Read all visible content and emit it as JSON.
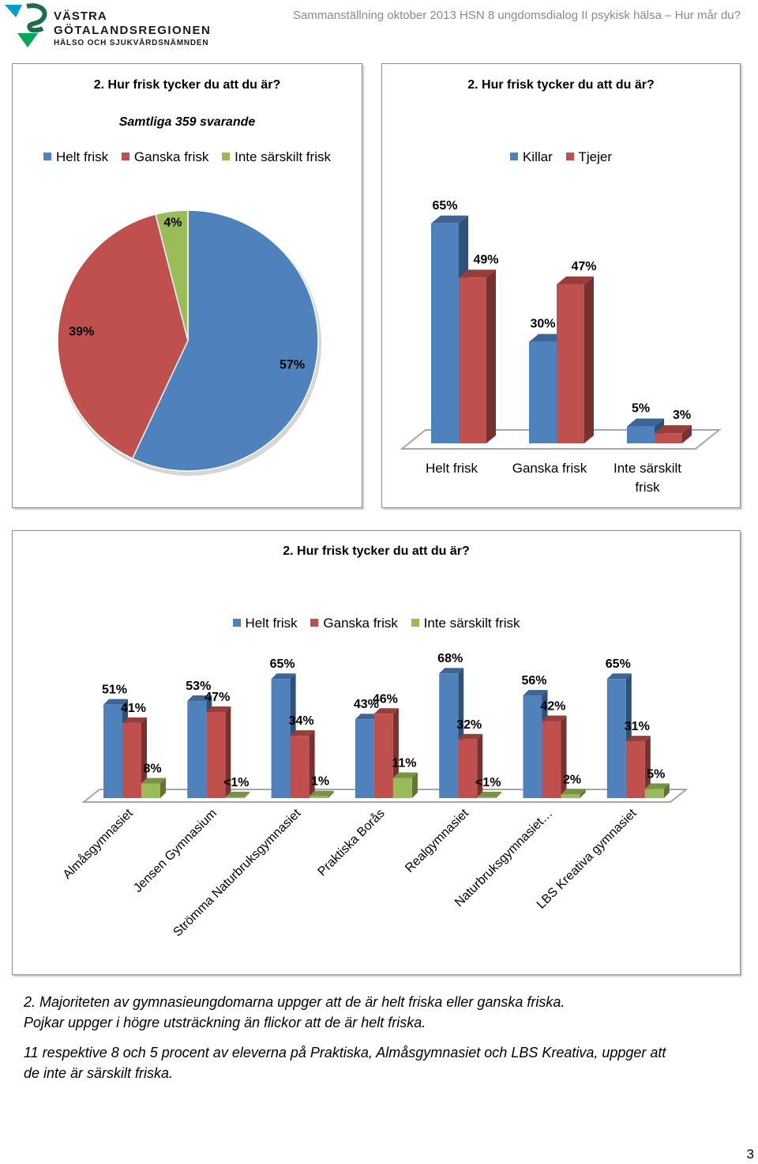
{
  "header": {
    "logo_line1": "VÄSTRA",
    "logo_line2": "GÖTALANDSREGIONEN",
    "logo_line3": "HÄLSO OCH SJUKVÅRDSNÄMNDEN",
    "title": "Sammanställning oktober 2013 HSN 8 ungdomsdialog II psykisk hälsa – Hur mår du?"
  },
  "colors": {
    "blue": "#4f81bd",
    "red": "#c0504d",
    "green": "#9bbb59"
  },
  "chart_data": [
    {
      "type": "pie",
      "title": "2. Hur frisk tycker du att du är?",
      "subtitle": "Samtliga 359 svarande",
      "legend": "top",
      "labels": [
        "Helt frisk",
        "Ganska frisk",
        "Inte särskilt frisk"
      ],
      "values": [
        57,
        39,
        4
      ],
      "value_labels": [
        "57%",
        "39%",
        "4%"
      ]
    },
    {
      "type": "bar",
      "title": "2. Hur frisk tycker du att du är?",
      "legend": "top",
      "categories": [
        "Helt frisk",
        "Ganska frisk",
        "Inte särskilt frisk"
      ],
      "series": [
        {
          "name": "Killar",
          "values": [
            65,
            30,
            5
          ],
          "value_labels": [
            "65%",
            "30%",
            "5%"
          ]
        },
        {
          "name": "Tjejer",
          "values": [
            49,
            47,
            3
          ],
          "value_labels": [
            "49%",
            "47%",
            "3%"
          ]
        }
      ]
    },
    {
      "type": "bar",
      "title": "2. Hur frisk tycker du att du är?",
      "legend": "top",
      "categories": [
        "Almåsgymnasiet",
        "Jensen Gymnasium",
        "Strömma Naturbruksgymnasiet",
        "Praktiska Borås",
        "Realgymnasiet",
        "Naturbruksgymnasiet…",
        "LBS Kreativa gymnasiet"
      ],
      "series": [
        {
          "name": "Helt frisk",
          "values": [
            51,
            53,
            65,
            43,
            68,
            56,
            65
          ],
          "value_labels": [
            "51%",
            "53%",
            "65%",
            "43%",
            "68%",
            "56%",
            "65%"
          ]
        },
        {
          "name": "Ganska frisk",
          "values": [
            41,
            47,
            34,
            46,
            32,
            42,
            31
          ],
          "value_labels": [
            "41%",
            "47%",
            "34%",
            "46%",
            "32%",
            "42%",
            "31%"
          ]
        },
        {
          "name": "Inte särskilt frisk",
          "values": [
            8,
            0.5,
            1,
            11,
            0.5,
            2,
            5
          ],
          "value_labels": [
            "8%",
            "<1%",
            "1%",
            "11%",
            "<1%",
            "2%",
            "5%"
          ]
        }
      ]
    }
  ],
  "notes": {
    "line1": "2. Majoriteten av gymnasieungdomarna uppger att de är helt friska eller ganska friska.",
    "line2": "Pojkar uppger i högre utsträckning än flickor att de är helt friska.",
    "line3": "11 respektive 8 och 5 procent av eleverna på Praktiska, Almåsgymnasiet och LBS Kreativa, uppger att",
    "line4": "de inte är särskilt friska."
  },
  "page_number": "3"
}
